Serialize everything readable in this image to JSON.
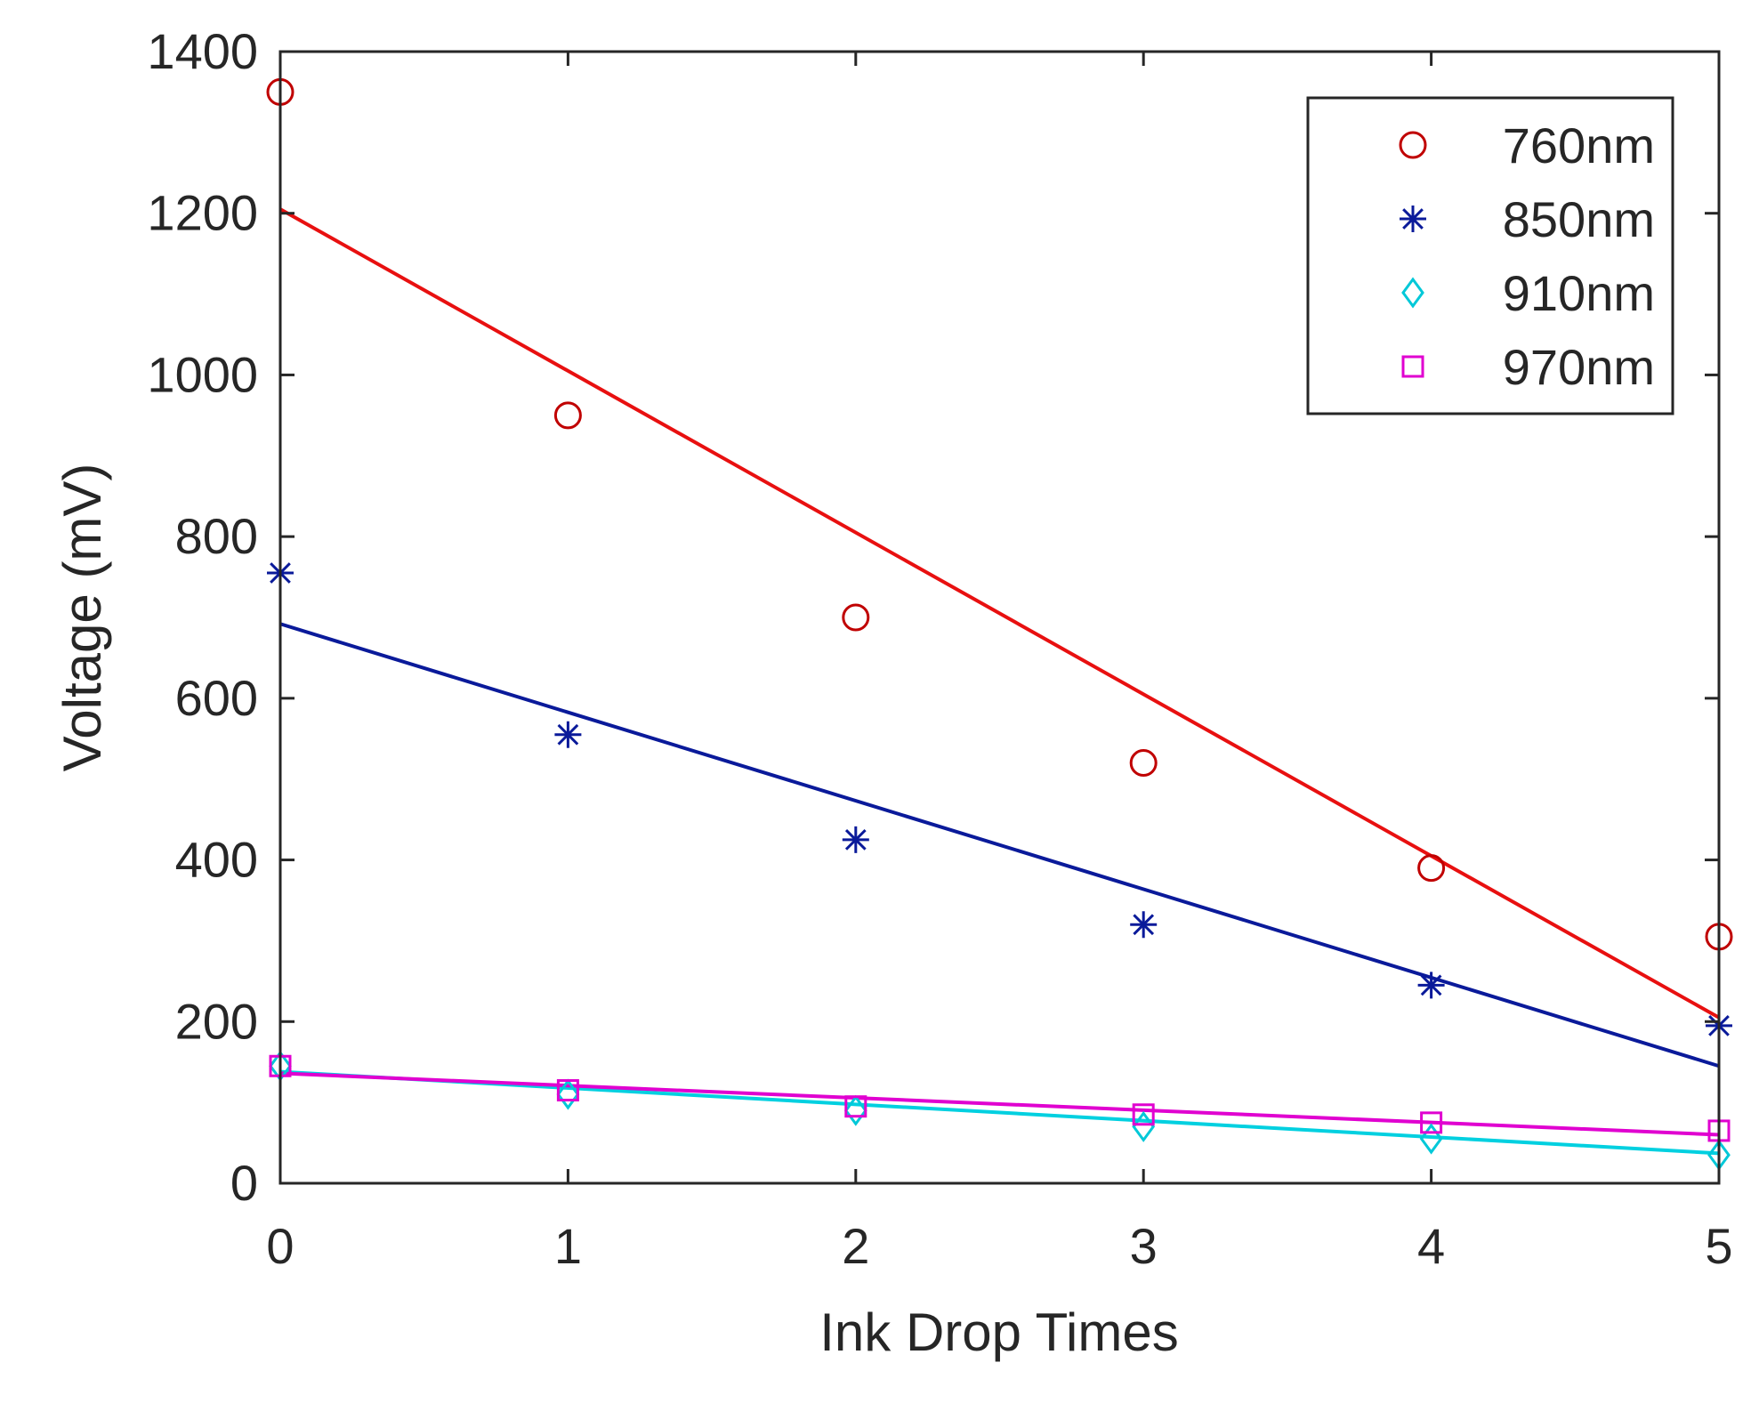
{
  "chart_data": {
    "type": "scatter",
    "title": "",
    "xlabel": "Ink Drop Times",
    "ylabel": "Voltage (mV)",
    "xlim": [
      0,
      5
    ],
    "ylim": [
      0,
      1400
    ],
    "x_ticks": [
      "0",
      "1",
      "2",
      "3",
      "4",
      "5"
    ],
    "y_ticks": [
      "0",
      "200",
      "400",
      "600",
      "800",
      "1000",
      "1200",
      "1400"
    ],
    "grid": false,
    "legend_position": "top-right",
    "x": [
      0,
      1,
      2,
      3,
      4,
      5
    ],
    "series": [
      {
        "name": "760nm",
        "marker": "circle",
        "color": "#c00000",
        "line_color": "#e81010",
        "values": [
          1350,
          950,
          700,
          520,
          390,
          305
        ],
        "fit": [
          1205,
          205
        ]
      },
      {
        "name": "850nm",
        "marker": "asterisk",
        "color": "#0a1a9a",
        "line_color": "#0a1a9a",
        "values": [
          755,
          555,
          425,
          320,
          245,
          195
        ],
        "fit": [
          692,
          145
        ]
      },
      {
        "name": "910nm",
        "marker": "diamond",
        "color": "#00c8d8",
        "line_color": "#00d0e0",
        "values": [
          145,
          110,
          90,
          70,
          55,
          35
        ],
        "fit": [
          138,
          37
        ]
      },
      {
        "name": "970nm",
        "marker": "square",
        "color": "#e000d0",
        "line_color": "#e000d0",
        "values": [
          145,
          115,
          95,
          85,
          75,
          65
        ],
        "fit": [
          136,
          60
        ]
      }
    ]
  }
}
